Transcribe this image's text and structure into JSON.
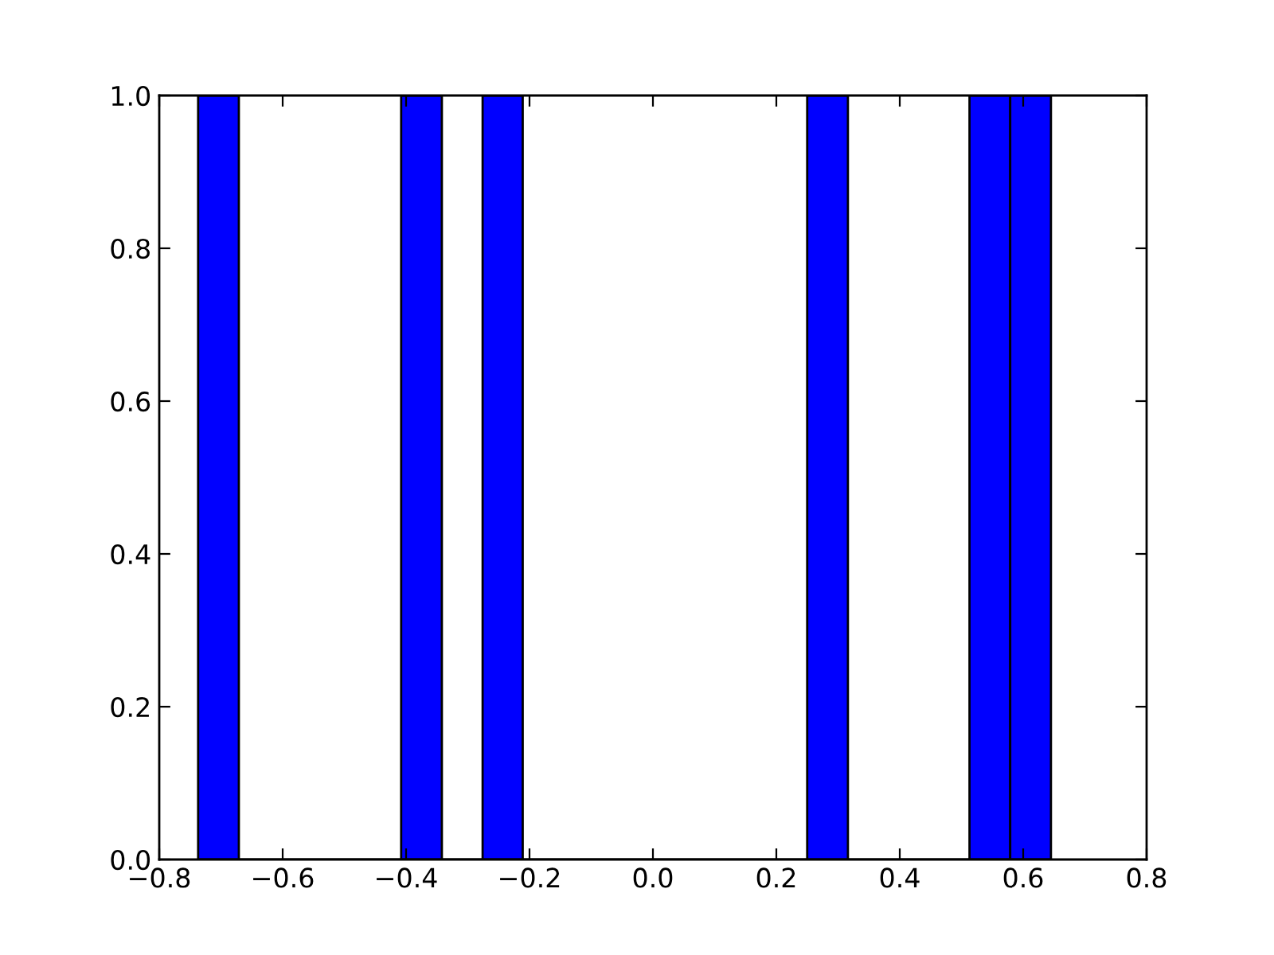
{
  "chart_data": {
    "type": "histogram",
    "bins": [
      -0.737,
      -0.671,
      -0.408,
      -0.342,
      -0.276,
      -0.211,
      0.25,
      0.316,
      0.513,
      0.579,
      0.645
    ],
    "values": [
      1,
      0,
      1,
      0,
      1,
      0,
      1,
      0,
      1,
      1
    ],
    "color": "#0000ff",
    "xlim": [
      -0.8,
      0.8
    ],
    "xticks": [
      {
        "value": -0.8,
        "label": "−0.8"
      },
      {
        "value": -0.6,
        "label": "−0.6"
      },
      {
        "value": -0.4,
        "label": "−0.4"
      },
      {
        "value": -0.2,
        "label": "−0.2"
      },
      {
        "value": 0.0,
        "label": "0.0"
      },
      {
        "value": 0.2,
        "label": "0.2"
      },
      {
        "value": 0.4,
        "label": "0.4"
      },
      {
        "value": 0.6,
        "label": "0.6"
      },
      {
        "value": 0.8,
        "label": "0.8"
      }
    ],
    "ylim": [
      0,
      1
    ],
    "yticks": [
      {
        "value": 0,
        "label": "0.0"
      },
      {
        "value": 0.2,
        "label": "0.2"
      },
      {
        "value": 0.4,
        "label": "0.4"
      },
      {
        "value": 0.6,
        "label": "0.6"
      },
      {
        "value": 0.8,
        "label": "0.8"
      },
      {
        "value": 1.0,
        "label": "1.0"
      }
    ],
    "grid": false
  }
}
